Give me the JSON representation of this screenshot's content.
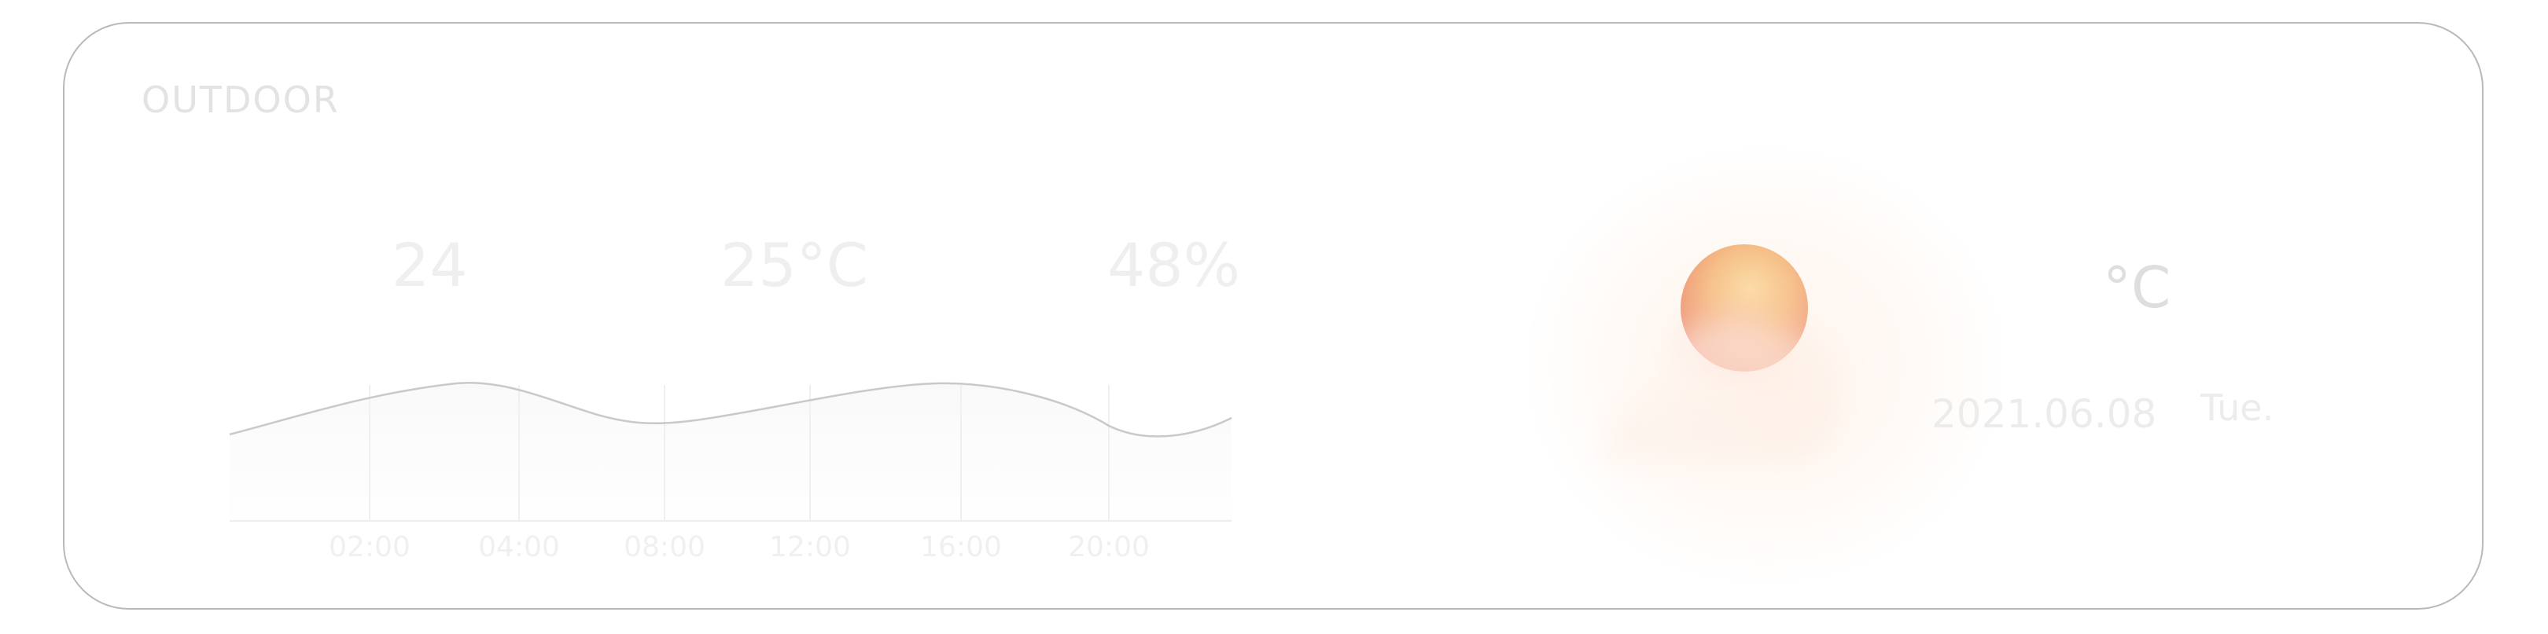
{
  "panel": {
    "title": "OUTDOOR"
  },
  "stats": {
    "value1": "24",
    "temperature": "25°C",
    "humidity": "48%"
  },
  "chart_data": {
    "type": "area",
    "categories": [
      "02:00",
      "04:00",
      "08:00",
      "12:00",
      "16:00",
      "20:00"
    ],
    "grid": true,
    "legend": "none"
  },
  "weather": {
    "icon": "partly-cloudy-icon",
    "temperature_unit": "°C",
    "date": "2021.06.08",
    "weekday": "Tue.",
    "colors": {
      "sun_top": "#f7c46a",
      "sun_bottom": "#e5522c",
      "cloud": "#fff6f1",
      "glow": "#fbe6da"
    }
  }
}
